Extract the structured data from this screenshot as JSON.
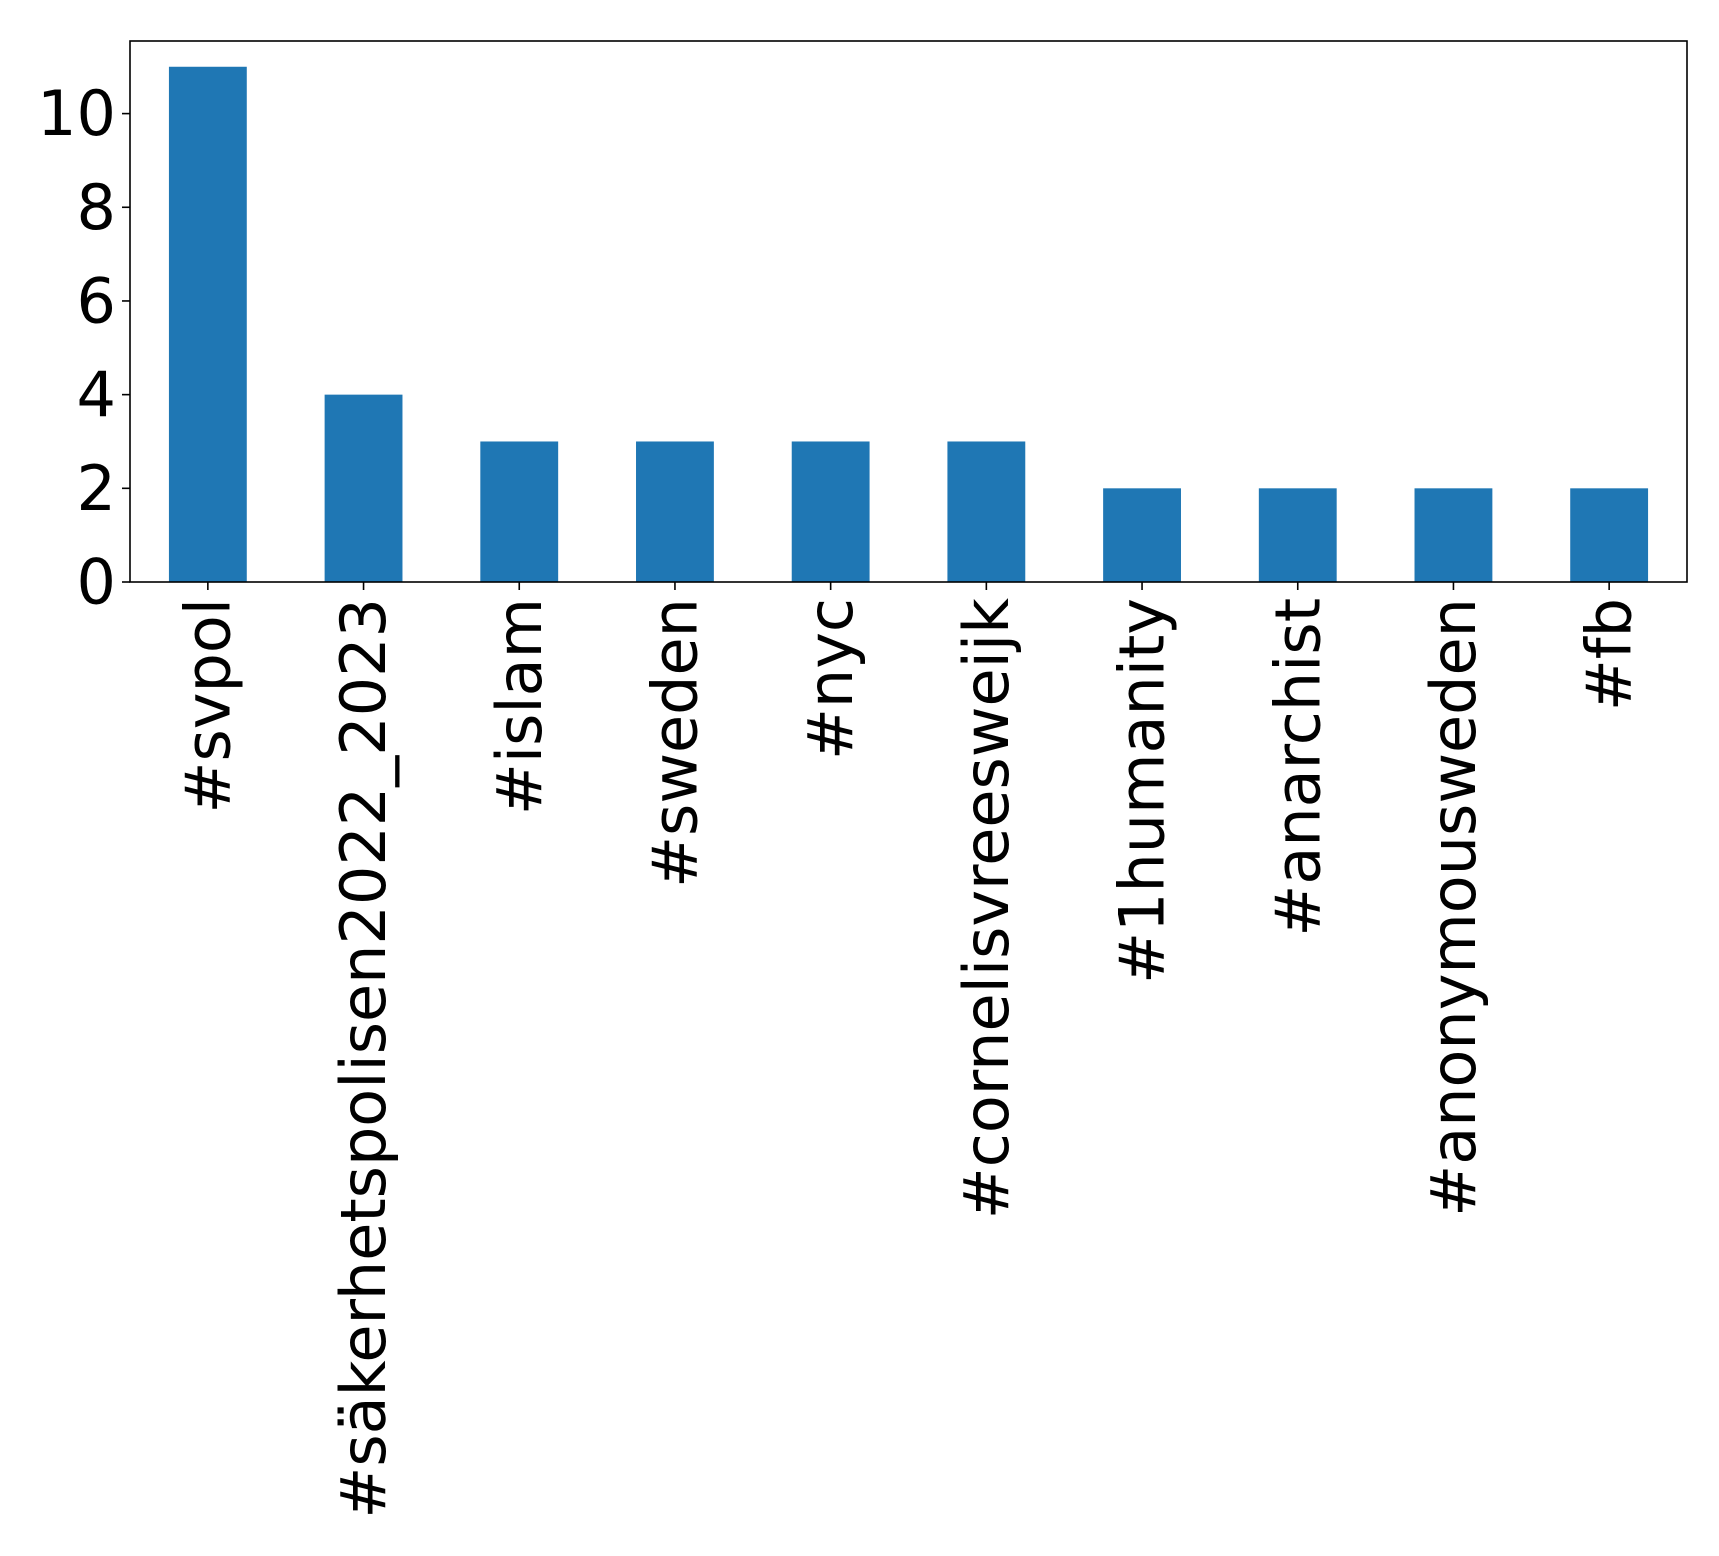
{
  "chart_data": {
    "type": "bar",
    "title": "",
    "xlabel": "",
    "ylabel": "",
    "categories": [
      "#svpol",
      "#säkerhetspolisen2022_2023",
      "#islam",
      "#sweden",
      "#nyc",
      "#cornelisvreesweijk",
      "#1humanity",
      "#anarchist",
      "#anonymousweden",
      "#fb"
    ],
    "values": [
      11,
      4,
      3,
      3,
      3,
      3,
      2,
      2,
      2,
      2
    ],
    "ylim": [
      0,
      11.55
    ],
    "yticks": [
      0,
      2,
      4,
      6,
      8,
      10
    ],
    "bar_color": "#1f77b4",
    "grid": false,
    "legend": "none",
    "xtick_rotation": "vertical"
  }
}
